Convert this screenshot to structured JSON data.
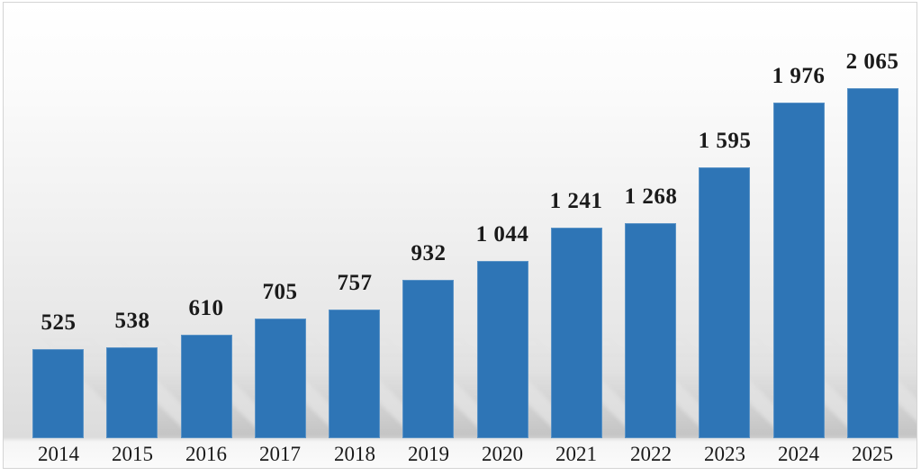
{
  "chart_data": {
    "type": "bar",
    "title": "",
    "xlabel": "",
    "ylabel": "",
    "categories": [
      "2014",
      "2015",
      "2016",
      "2017",
      "2018",
      "2019",
      "2020",
      "2021",
      "2022",
      "2023",
      "2024",
      "2025"
    ],
    "values": [
      525,
      538,
      610,
      705,
      757,
      932,
      1044,
      1241,
      1268,
      1595,
      1976,
      2065
    ],
    "value_labels": [
      "525",
      "538",
      "610",
      "705",
      "757",
      "932",
      "1 044",
      "1 241",
      "1 268",
      "1 595",
      "1 976",
      "2 065"
    ],
    "series_count": 1,
    "data_labels": "above bars",
    "legend": "none",
    "gridlines": "off",
    "y_axis": "hidden",
    "ylim": [
      0,
      2200
    ],
    "bar_color": "#2e75b6",
    "label_color": "#1a1a1a",
    "bar_effect": "perspective shadow lower-right",
    "plot_background": "vertical gradient white to light gray",
    "frame_border_color": "#d4d4d4"
  }
}
